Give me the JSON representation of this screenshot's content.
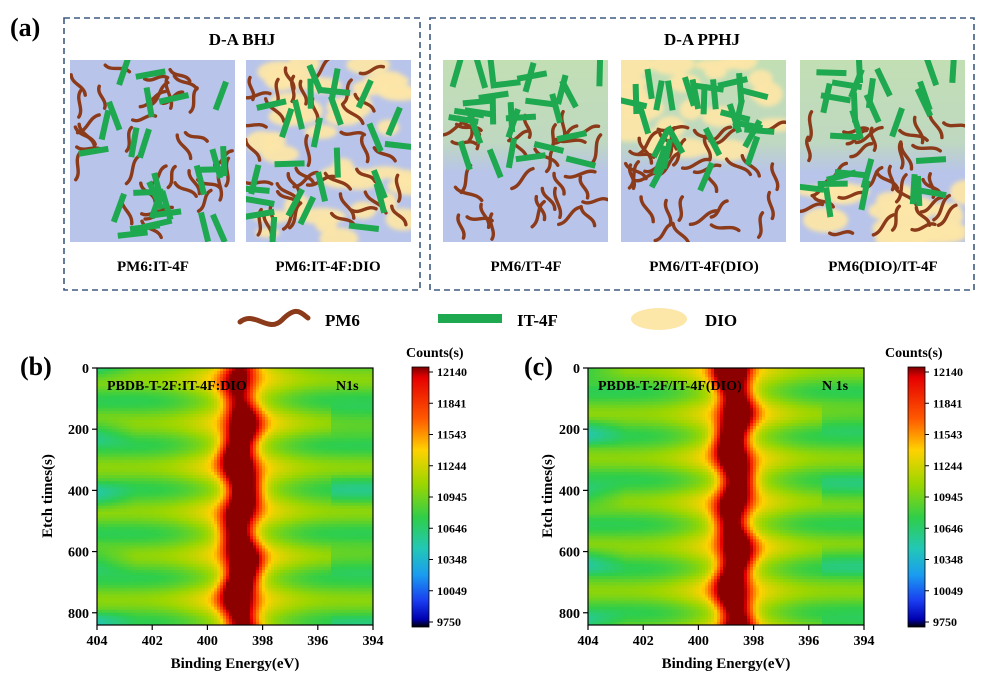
{
  "panel_a": {
    "label": "(a)",
    "groups": [
      {
        "title": "D-A BHJ"
      },
      {
        "title": "D-A PPHJ"
      }
    ],
    "films": [
      {
        "label": "PM6:IT-4F",
        "type": "bhj",
        "dio": "none"
      },
      {
        "label": "PM6:IT-4F:DIO",
        "type": "bhj",
        "dio": "patches"
      },
      {
        "label": "PM6/IT-4F",
        "type": "pphj",
        "dio": "none"
      },
      {
        "label": "PM6/IT-4F(DIO)",
        "type": "pphj",
        "dio": "top"
      },
      {
        "label": "PM6(DIO)/IT-4F",
        "type": "pphj",
        "dio": "bottom"
      }
    ],
    "legend": [
      {
        "label": "PM6",
        "icon": "pm6-chain-icon"
      },
      {
        "label": "IT-4F",
        "icon": "it4f-bar-icon"
      },
      {
        "label": "DIO",
        "icon": "dio-blob-icon"
      }
    ],
    "colors": {
      "pm6": "#8B3A1A",
      "it4f": "#1EA84F",
      "dio": "#FCE6A8",
      "substrate": "#B8C4EA",
      "acceptor_layer": "#C2DFB4",
      "border": "#3D5A80"
    }
  },
  "chart_data": [
    {
      "type": "heatmap",
      "panel_label": "(b)",
      "annotation": "PBDB-T-2F:IT-4F:DIO",
      "region": "N1s",
      "xlabel": "Binding Energy(eV)",
      "ylabel": "Etch times(s)",
      "xlim": [
        404,
        394
      ],
      "ylim": [
        0,
        840
      ],
      "x_ticks": [
        "404",
        "402",
        "400",
        "398",
        "396",
        "394"
      ],
      "y_ticks": [
        "0",
        "200",
        "400",
        "600",
        "800"
      ],
      "peak_center_ev": 398.8,
      "peak_profile": [
        {
          "t": 0,
          "i": 0.55
        },
        {
          "t": 100,
          "i": 0.62
        },
        {
          "t": 200,
          "i": 0.78
        },
        {
          "t": 300,
          "i": 0.86
        },
        {
          "t": 400,
          "i": 0.82
        },
        {
          "t": 500,
          "i": 0.72
        },
        {
          "t": 600,
          "i": 0.84
        },
        {
          "t": 700,
          "i": 0.92
        },
        {
          "t": 800,
          "i": 0.7
        }
      ],
      "colorbar": {
        "title": "Counts(s)",
        "ticks": [
          "12140",
          "11841",
          "11543",
          "11244",
          "10945",
          "10646",
          "10348",
          "10049",
          "9750"
        ]
      }
    },
    {
      "type": "heatmap",
      "panel_label": "(c)",
      "annotation": "PBDB-T-2F/IT-4F(DIO)",
      "region": "N 1s",
      "xlabel": "Binding Energy(eV)",
      "ylabel": "Etch times(s)",
      "xlim": [
        404,
        394
      ],
      "ylim": [
        0,
        840
      ],
      "x_ticks": [
        "404",
        "402",
        "400",
        "398",
        "396",
        "394"
      ],
      "y_ticks": [
        "0",
        "200",
        "400",
        "600",
        "800"
      ],
      "peak_center_ev": 398.7,
      "peak_profile": [
        {
          "t": 0,
          "i": 0.98
        },
        {
          "t": 100,
          "i": 0.75
        },
        {
          "t": 200,
          "i": 0.85
        },
        {
          "t": 300,
          "i": 0.8
        },
        {
          "t": 400,
          "i": 0.74
        },
        {
          "t": 500,
          "i": 0.7
        },
        {
          "t": 600,
          "i": 0.78
        },
        {
          "t": 700,
          "i": 0.8
        },
        {
          "t": 800,
          "i": 0.72
        }
      ],
      "colorbar": {
        "title": "Counts(s)",
        "ticks": [
          "12140",
          "11841",
          "11543",
          "11244",
          "10945",
          "10646",
          "10348",
          "10049",
          "9750"
        ]
      }
    }
  ]
}
